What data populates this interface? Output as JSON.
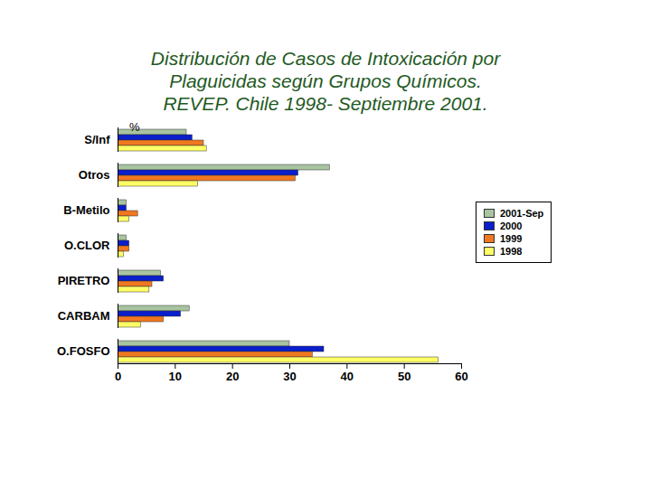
{
  "chart_data": {
    "type": "bar",
    "orientation": "horizontal",
    "title": "Distribución de Casos de Intoxicación por\nPlaguicidas según Grupos Químicos.\nREVEP. Chile 1998- Septiembre 2001.",
    "y_label": "%",
    "categories": [
      "S/Inf",
      "Otros",
      "B-Metilo",
      "O.CLOR",
      "PIRETRO",
      "CARBAM",
      "O.FOSFO"
    ],
    "series": [
      {
        "name": "2001-Sep",
        "color": "#a8c4a0",
        "values": [
          12,
          37,
          1.5,
          1.5,
          7.5,
          12.5,
          30
        ]
      },
      {
        "name": "2000",
        "color": "#0a1ecc",
        "values": [
          13,
          31.5,
          1.5,
          2,
          8,
          11,
          36
        ]
      },
      {
        "name": "1999",
        "color": "#f07820",
        "values": [
          15,
          31,
          3.5,
          2,
          6,
          8,
          34
        ]
      },
      {
        "name": "1998",
        "color": "#ffff66",
        "values": [
          15.5,
          14,
          2,
          1,
          5.5,
          4,
          56
        ]
      }
    ],
    "xlim": [
      0,
      60
    ],
    "xticks": [
      0,
      10,
      20,
      30,
      40,
      50,
      60
    ],
    "grid": false,
    "legend": "right"
  }
}
